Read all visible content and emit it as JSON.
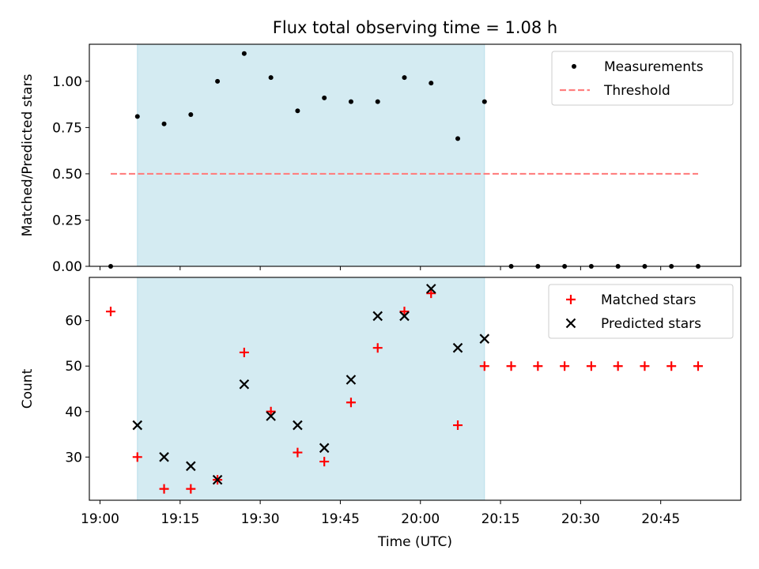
{
  "figure_title": "Flux total observing time = 1.08 h",
  "chart_data": [
    {
      "type": "scatter",
      "title": "Flux total observing time = 1.08 h",
      "xlabel": "",
      "ylabel": "Matched/Predicted stars",
      "xlim": [
        "18:58",
        "21:00"
      ],
      "ylim": [
        0,
        1.2
      ],
      "yticks": [
        "0.00",
        "0.25",
        "0.50",
        "0.75",
        "1.00"
      ],
      "grid": false,
      "legend_position": "top-right",
      "shaded_region": {
        "from": "19:07",
        "to": "20:12",
        "color": "#add8e6"
      },
      "series": [
        {
          "name": "Measurements",
          "marker": "dot",
          "color": "#000000",
          "x": [
            "19:02",
            "19:07",
            "19:12",
            "19:17",
            "19:22",
            "19:27",
            "19:32",
            "19:37",
            "19:42",
            "19:47",
            "19:52",
            "19:57",
            "20:02",
            "20:07",
            "20:12",
            "20:17",
            "20:22",
            "20:27",
            "20:32",
            "20:37",
            "20:42",
            "20:47",
            "20:52"
          ],
          "y": [
            0,
            0.81,
            0.77,
            0.82,
            1.0,
            1.15,
            1.02,
            0.84,
            0.91,
            0.89,
            0.89,
            1.02,
            0.99,
            0.69,
            0.89,
            0,
            0,
            0,
            0,
            0,
            0,
            0,
            0
          ]
        },
        {
          "name": "Threshold",
          "marker": "dashed-line",
          "color": "#ff7f7f",
          "x": [
            "19:02",
            "20:52"
          ],
          "y": [
            0.5,
            0.5
          ]
        }
      ]
    },
    {
      "type": "scatter",
      "title": "",
      "xlabel": "Time (UTC)",
      "ylabel": "Count",
      "xlim": [
        "18:58",
        "21:00"
      ],
      "ylim": [
        20.5,
        69.5
      ],
      "yticks": [
        "30",
        "40",
        "50",
        "60"
      ],
      "xticks": [
        "19:00",
        "19:15",
        "19:30",
        "19:45",
        "20:00",
        "20:15",
        "20:30",
        "20:45"
      ],
      "grid": false,
      "legend_position": "top-right",
      "shaded_region": {
        "from": "19:07",
        "to": "20:12",
        "color": "#add8e6"
      },
      "series": [
        {
          "name": "Matched stars",
          "marker": "plus",
          "color": "#ff0000",
          "x": [
            "19:02",
            "19:07",
            "19:12",
            "19:17",
            "19:22",
            "19:27",
            "19:32",
            "19:37",
            "19:42",
            "19:47",
            "19:52",
            "19:57",
            "20:02",
            "20:07",
            "20:12",
            "20:17",
            "20:22",
            "20:27",
            "20:32",
            "20:37",
            "20:42",
            "20:47",
            "20:52"
          ],
          "y": [
            62,
            30,
            23,
            23,
            25,
            53,
            40,
            31,
            29,
            42,
            54,
            62,
            66,
            37,
            50,
            50,
            50,
            50,
            50,
            50,
            50,
            50,
            50
          ]
        },
        {
          "name": "Predicted stars",
          "marker": "x",
          "color": "#000000",
          "x": [
            "19:07",
            "19:12",
            "19:17",
            "19:22",
            "19:27",
            "19:32",
            "19:37",
            "19:42",
            "19:47",
            "19:52",
            "19:57",
            "20:02",
            "20:07",
            "20:12"
          ],
          "y": [
            37,
            30,
            28,
            25,
            46,
            39,
            37,
            32,
            47,
            61,
            61,
            67,
            54,
            56
          ]
        }
      ]
    }
  ]
}
